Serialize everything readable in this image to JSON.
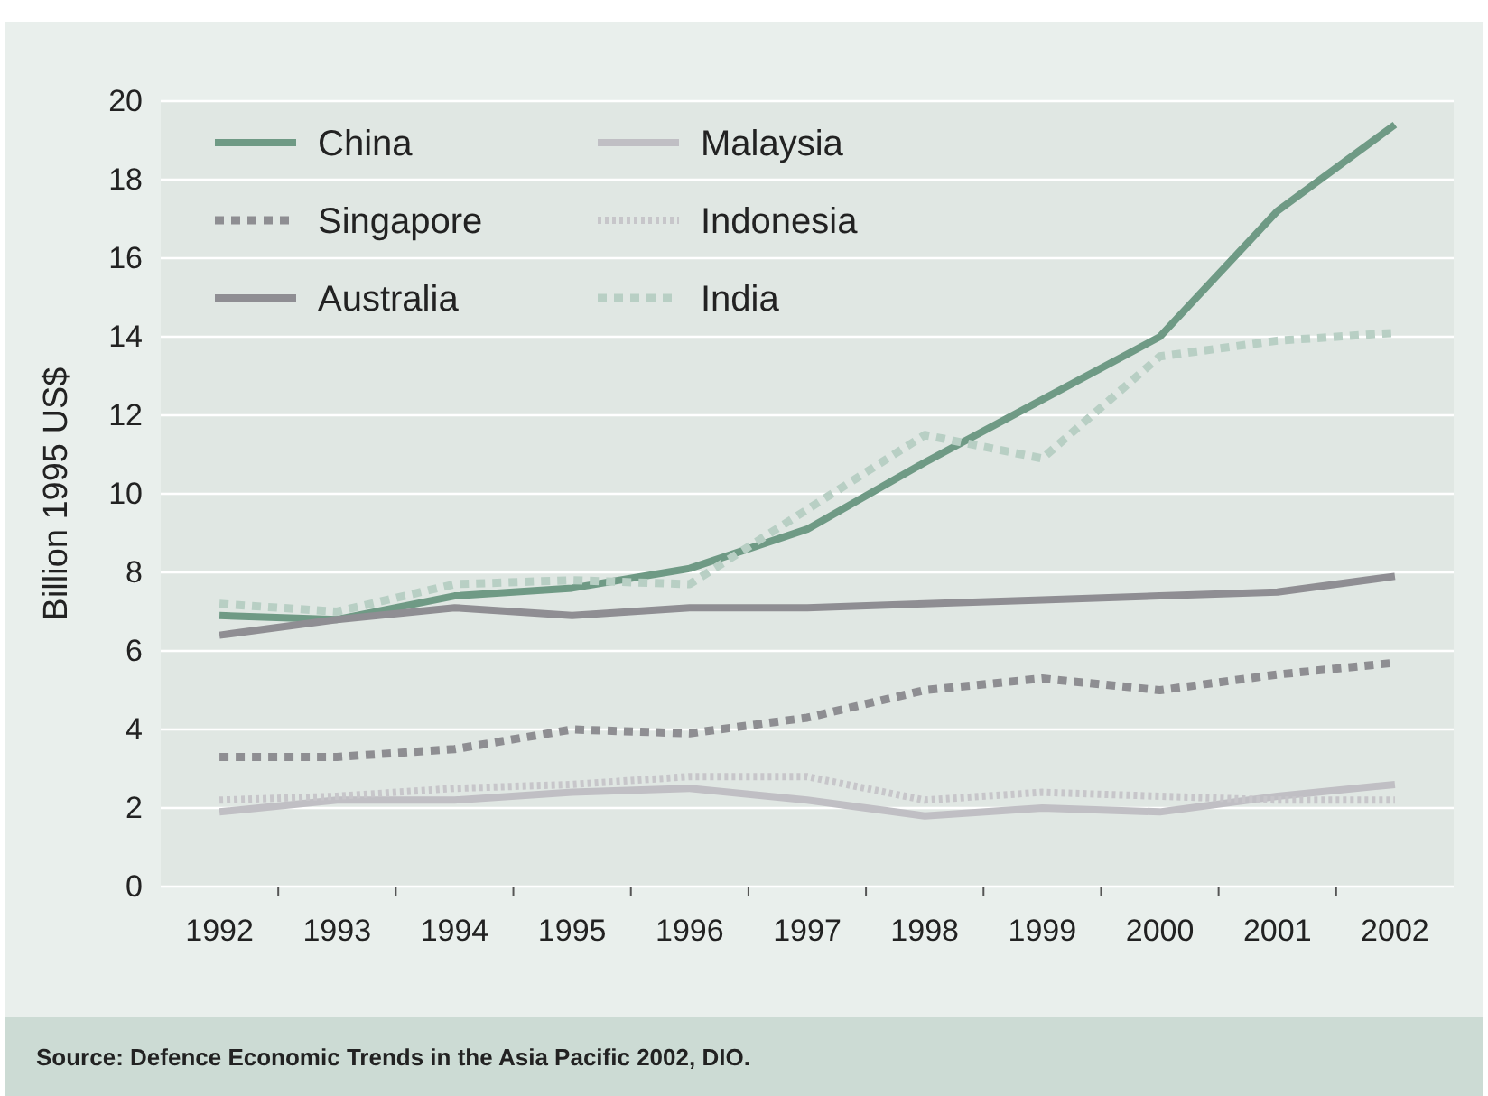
{
  "chart_data": {
    "type": "line",
    "ylabel": "Billion 1995 US$",
    "categories": [
      "1992",
      "1993",
      "1994",
      "1995",
      "1996",
      "1997",
      "1998",
      "1999",
      "2000",
      "2001",
      "2002"
    ],
    "series": [
      {
        "name": "China",
        "color": "#6f9a85",
        "line_style": "solid",
        "values": [
          6.9,
          6.8,
          7.4,
          7.6,
          8.1,
          9.1,
          10.8,
          12.4,
          14.0,
          17.2,
          19.4
        ]
      },
      {
        "name": "Singapore",
        "color": "#8e8e92",
        "line_style": "dashed",
        "values": [
          3.3,
          3.3,
          3.5,
          4.0,
          3.9,
          4.3,
          5.0,
          5.3,
          5.0,
          5.4,
          5.7
        ]
      },
      {
        "name": "Australia",
        "color": "#8f8e93",
        "line_style": "solid",
        "values": [
          6.4,
          6.8,
          7.1,
          6.9,
          7.1,
          7.1,
          7.2,
          7.3,
          7.4,
          7.5,
          7.9
        ]
      },
      {
        "name": "Malaysia",
        "color": "#c0bfc4",
        "line_style": "solid",
        "values": [
          1.9,
          2.2,
          2.2,
          2.4,
          2.5,
          2.2,
          1.8,
          2.0,
          1.9,
          2.3,
          2.6
        ]
      },
      {
        "name": "Indonesia",
        "color": "#c7c6ca",
        "line_style": "dotted",
        "values": [
          2.2,
          2.3,
          2.5,
          2.6,
          2.8,
          2.8,
          2.2,
          2.4,
          2.3,
          2.2,
          2.2
        ]
      },
      {
        "name": "India",
        "color": "#b8cfc4",
        "line_style": "dashed",
        "values": [
          7.2,
          7.0,
          7.7,
          7.8,
          7.7,
          9.6,
          11.5,
          10.9,
          13.5,
          13.9,
          14.1
        ]
      }
    ],
    "ylim": [
      0,
      20
    ],
    "yticks": [
      0,
      2,
      4,
      6,
      8,
      10,
      12,
      14,
      16,
      18,
      20
    ],
    "grid": "y",
    "legend": "top left",
    "annotations": [
      "Source: Defence Economic Trends in the Asia Pacific 2002, DIO."
    ]
  }
}
